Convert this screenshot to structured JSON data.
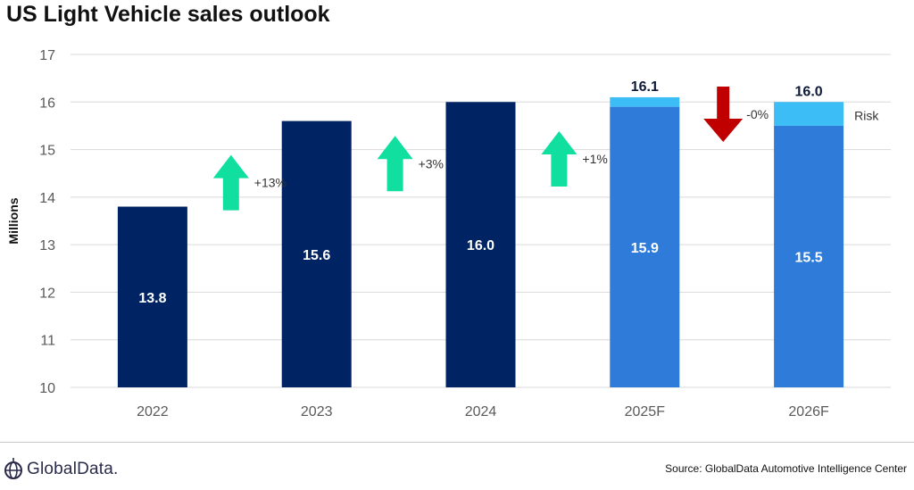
{
  "title": "US Light Vehicle sales outlook",
  "logo_text": "GlobalData.",
  "source_text": "Source: GlobalData Automotive Intelligence Center",
  "colors": {
    "actual": "#002463",
    "forecast": "#2e7bd9",
    "risk": "#3dbdf5",
    "up_arrow": "#10dfa0",
    "down_arrow": "#c00000",
    "grid": "#d9d9d9",
    "axis_text": "#595959"
  },
  "chart_data": {
    "type": "bar",
    "ylabel": "Millions",
    "ylim": [
      10,
      17
    ],
    "yticks": [
      10,
      11,
      12,
      13,
      14,
      15,
      16,
      17
    ],
    "grid": true,
    "categories": [
      "2022",
      "2023",
      "2024",
      "2025F",
      "2026F"
    ],
    "series": [
      {
        "name": "",
        "values": [
          13.8,
          15.6,
          16.0,
          15.9,
          15.5
        ],
        "labels": [
          "13.8",
          "15.6",
          "16.0",
          "15.9",
          "15.5"
        ]
      },
      {
        "name": "Risk",
        "values": [
          0,
          0,
          0,
          0.2,
          0.5
        ],
        "total_labels": [
          "",
          "",
          "",
          "16.1",
          "16.0"
        ]
      }
    ],
    "bar_kind": [
      "actual",
      "actual",
      "actual",
      "forecast",
      "forecast"
    ],
    "changes": [
      {
        "label": "+13%",
        "direction": "up"
      },
      {
        "label": "+3%",
        "direction": "up"
      },
      {
        "label": "+1%",
        "direction": "up"
      },
      {
        "label": "-0%",
        "direction": "down"
      }
    ],
    "risk_label": "Risk"
  }
}
